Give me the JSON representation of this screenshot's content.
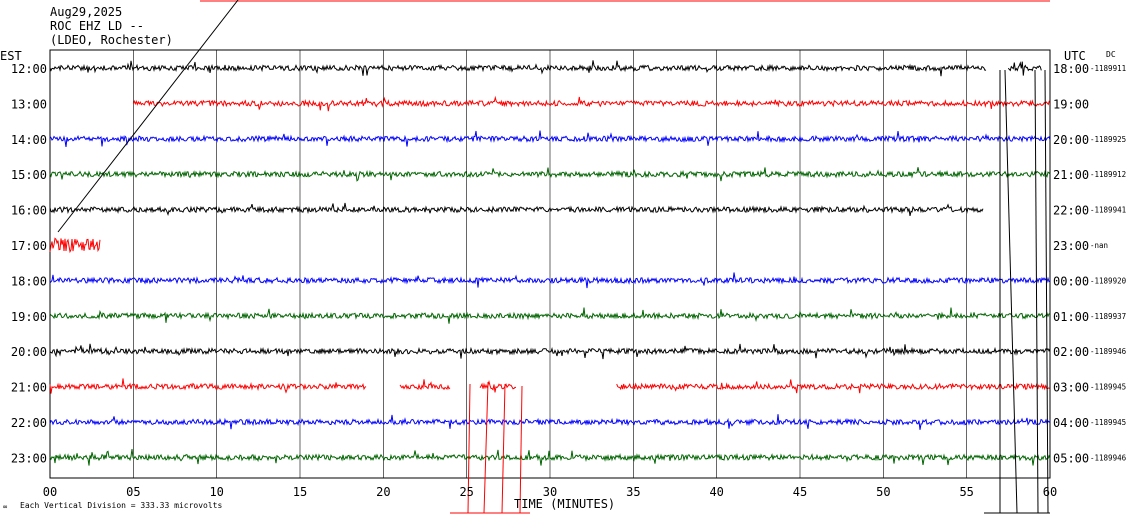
{
  "header": {
    "date": "Aug29,2025",
    "station": "ROC EHZ LD --",
    "network": "(LDEO, Rochester)"
  },
  "labels": {
    "left_tz": "EST",
    "right_tz": "UTC",
    "dc": "DC",
    "xlabel": "TIME (MINUTES)",
    "scale_note": "Each Vertical Division =  333.33 microvolts"
  },
  "colors": {
    "cycle": [
      "#000000",
      "#ff0000",
      "#0000ff",
      "#006400"
    ],
    "grid": "#000000"
  },
  "chart_data": {
    "type": "line",
    "title": "",
    "xlabel": "TIME (MINUTES)",
    "ylabel": "",
    "xlim": [
      0,
      60
    ],
    "x_ticks": [
      "00",
      "05",
      "10",
      "15",
      "20",
      "25",
      "30",
      "35",
      "40",
      "45",
      "50",
      "55",
      "60"
    ],
    "grid": true,
    "rows": [
      {
        "left": "12:00",
        "right": "18:00",
        "dc": "-1189911",
        "color": "#000000",
        "segments": [
          [
            0,
            56.2
          ],
          [
            57.5,
            59.5
          ]
        ]
      },
      {
        "left": "13:00",
        "right": "19:00",
        "dc": "",
        "color": "#ff0000",
        "segments": [
          [
            5,
            60
          ]
        ]
      },
      {
        "left": "14:00",
        "right": "20:00",
        "dc": "-1189925",
        "color": "#0000ff",
        "segments": [
          [
            0,
            60
          ]
        ]
      },
      {
        "left": "15:00",
        "right": "21:00",
        "dc": "-1189912",
        "color": "#006400",
        "segments": [
          [
            0,
            60
          ]
        ]
      },
      {
        "left": "16:00",
        "right": "22:00",
        "dc": "-1189941",
        "color": "#000000",
        "segments": [
          [
            0,
            56
          ]
        ]
      },
      {
        "left": "17:00",
        "right": "23:00",
        "dc": "-nan",
        "color": "#ff0000",
        "segments": [
          [
            0,
            3
          ]
        ]
      },
      {
        "left": "18:00",
        "right": "00:00",
        "dc": "-1189920",
        "color": "#0000ff",
        "segments": [
          [
            0,
            60
          ]
        ]
      },
      {
        "left": "19:00",
        "right": "01:00",
        "dc": "-1189937",
        "color": "#006400",
        "segments": [
          [
            0,
            60
          ]
        ]
      },
      {
        "left": "20:00",
        "right": "02:00",
        "dc": "-1189946",
        "color": "#000000",
        "segments": [
          [
            0,
            60
          ]
        ]
      },
      {
        "left": "21:00",
        "right": "03:00",
        "dc": "-1189945",
        "color": "#ff0000",
        "segments": [
          [
            0,
            19
          ],
          [
            21,
            24
          ],
          [
            25.8,
            28
          ],
          [
            34,
            60
          ]
        ]
      },
      {
        "left": "22:00",
        "right": "04:00",
        "dc": "-1189945",
        "color": "#0000ff",
        "segments": [
          [
            0,
            60
          ]
        ]
      },
      {
        "left": "23:00",
        "right": "05:00",
        "dc": "-1189946",
        "color": "#006400",
        "segments": [
          [
            0,
            60
          ]
        ]
      }
    ]
  }
}
